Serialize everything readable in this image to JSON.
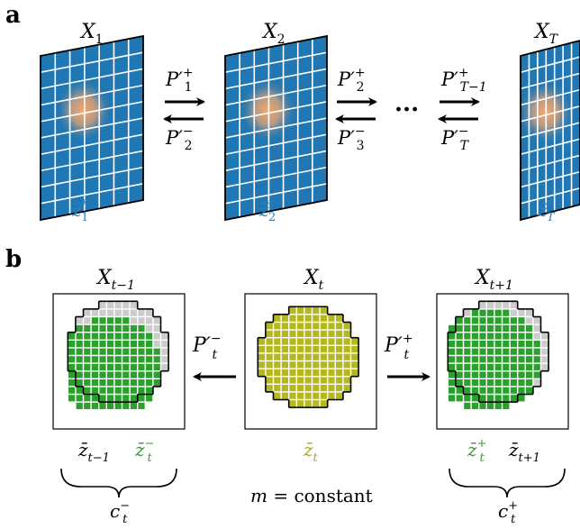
{
  "panel_a": {
    "label": "a",
    "frames": [
      {
        "title": "X",
        "title_sub": "1",
        "z_label": "z̃",
        "z_sup": "*",
        "z_sub": "1"
      },
      {
        "title": "X",
        "title_sub": "2",
        "z_label": "z̃",
        "z_sup": "*",
        "z_sub": "2"
      },
      {
        "title": "X",
        "title_sub": "T",
        "z_label": "z̃",
        "z_sup": "*",
        "z_sub": "T"
      }
    ],
    "transitions": [
      {
        "fwd": "P′",
        "fwd_sup": "+",
        "fwd_sub": "1",
        "bwd": "P′",
        "bwd_sup": "−",
        "bwd_sub": "2"
      },
      {
        "fwd": "P′",
        "fwd_sup": "+",
        "fwd_sub": "2",
        "bwd": "P′",
        "bwd_sup": "−",
        "bwd_sub": "3"
      },
      {
        "fwd": "P′",
        "fwd_sup": "+",
        "fwd_sub": "T−1",
        "bwd": "P′",
        "bwd_sup": "−",
        "bwd_sub": "T"
      }
    ],
    "ellipsis": "···"
  },
  "panel_b": {
    "label": "b",
    "frames": [
      {
        "title": "X",
        "title_sub": "t−1"
      },
      {
        "title": "X",
        "title_sub": "t"
      },
      {
        "title": "X",
        "title_sub": "t+1"
      }
    ],
    "arrow_left": {
      "text": "P′",
      "sup": "−",
      "sub": "t"
    },
    "arrow_right": {
      "text": "P′",
      "sup": "+",
      "sub": "t"
    },
    "left_labels": {
      "a": "z̄",
      "a_sub": "t−1",
      "b": "z̄",
      "b_sup": "−",
      "b_sub": "t"
    },
    "center_label": {
      "a": "z̄",
      "a_sub": "t"
    },
    "right_labels": {
      "a": "z̄",
      "a_sup": "+",
      "a_sub": "t",
      "b": "z̄",
      "b_sub": "t+1"
    },
    "brace_left": {
      "text": "c",
      "sup": "−",
      "sub": "t"
    },
    "brace_right": {
      "text": "c",
      "sup": "+",
      "sub": "t"
    },
    "center_note": {
      "m": "m",
      "eq": " = constant"
    }
  },
  "colors": {
    "grid_blue": "#1f77b4",
    "hot": "#f7a76a",
    "label_blue": "#2c7fb8",
    "olive": "#b5b821",
    "olive_label": "#a9a92b",
    "green": "#2ca02c",
    "green_label": "#3a9a32",
    "gray": "#cccccc"
  }
}
